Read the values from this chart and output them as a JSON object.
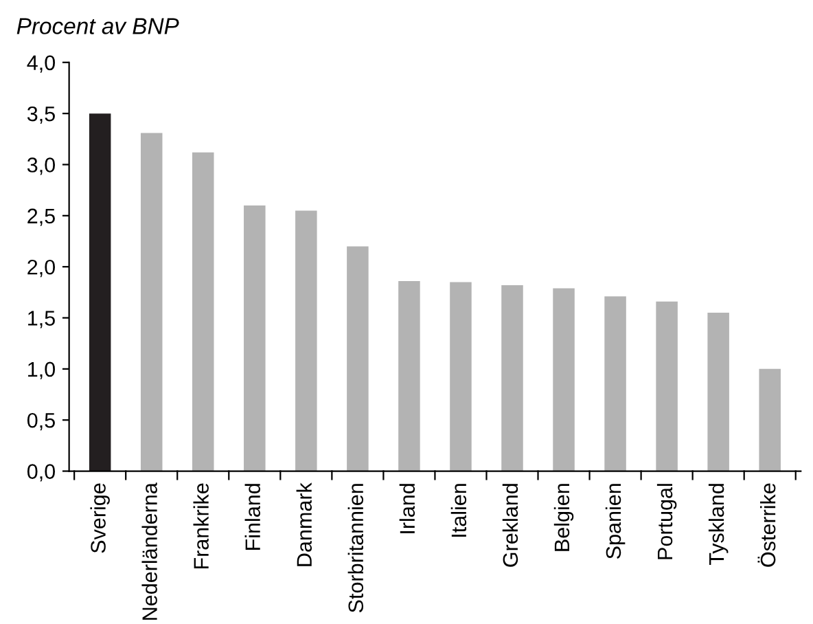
{
  "chart_data": {
    "type": "bar",
    "ylabel": "Procent av BNP",
    "categories": [
      "Sverige",
      "Nederländerna",
      "Frankrike",
      "Finland",
      "Danmark",
      "Storbritannien",
      "Irland",
      "Italien",
      "Grekland",
      "Belgien",
      "Spanien",
      "Portugal",
      "Tyskland",
      "Österrike"
    ],
    "values": [
      3.5,
      3.31,
      3.12,
      2.6,
      2.55,
      2.2,
      1.86,
      1.85,
      1.82,
      1.79,
      1.71,
      1.66,
      1.55,
      1.0
    ],
    "colors": [
      "#231f20",
      "#b3b3b3",
      "#b3b3b3",
      "#b3b3b3",
      "#b3b3b3",
      "#b3b3b3",
      "#b3b3b3",
      "#b3b3b3",
      "#b3b3b3",
      "#b3b3b3",
      "#b3b3b3",
      "#b3b3b3",
      "#b3b3b3",
      "#b3b3b3"
    ],
    "ylim": [
      0,
      4
    ],
    "yticks": [
      {
        "value": 0,
        "label": "0,0"
      },
      {
        "value": 0.5,
        "label": "0,5"
      },
      {
        "value": 1,
        "label": "1,0"
      },
      {
        "value": 1.5,
        "label": "1,5"
      },
      {
        "value": 2,
        "label": "2,0"
      },
      {
        "value": 2.5,
        "label": "2,5"
      },
      {
        "value": 3,
        "label": "3,0"
      },
      {
        "value": 3.5,
        "label": "3,5"
      },
      {
        "value": 4,
        "label": "4,0"
      }
    ],
    "grid": false,
    "legend": false
  }
}
